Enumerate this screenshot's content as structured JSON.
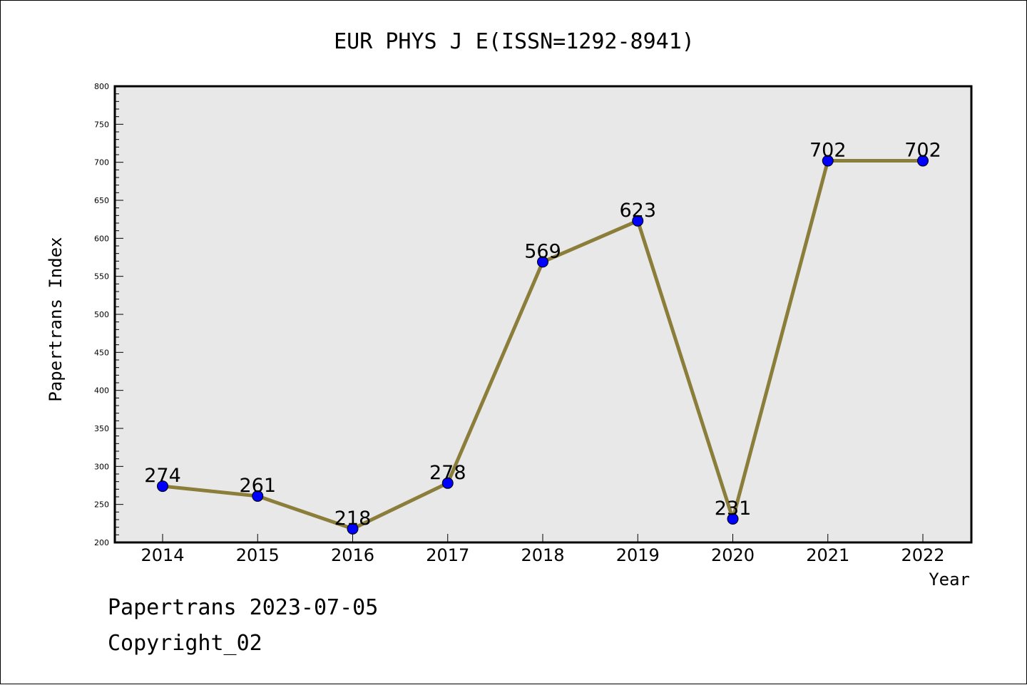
{
  "chart_data": {
    "type": "line",
    "title": "EUR PHYS J E(ISSN=1292-8941)",
    "xlabel": "Year",
    "ylabel": "Papertrans Index",
    "categories": [
      "2014",
      "2015",
      "2016",
      "2017",
      "2018",
      "2019",
      "2020",
      "2021",
      "2022"
    ],
    "series": [
      {
        "values": [
          274,
          261,
          218,
          278,
          569,
          623,
          231,
          702,
          702
        ],
        "data_labels": [
          "274",
          "261",
          "218",
          "278",
          "569",
          "623",
          "231",
          "702",
          "702"
        ]
      }
    ],
    "ylim": [
      200,
      800
    ],
    "yticks": [
      200,
      250,
      300,
      350,
      400,
      450,
      500,
      550,
      600,
      650,
      700,
      750,
      800
    ],
    "ytick_labels": [
      "200",
      "250",
      "300",
      "350",
      "400",
      "450",
      "500",
      "550",
      "600",
      "650",
      "700",
      "750",
      "800"
    ],
    "grid": false,
    "legend": "none",
    "colors": {
      "plot_background": "#e8e8e8",
      "line": "#8b7d3a",
      "marker": "#0000ff",
      "marker_edge": "#000000",
      "axis": "#000000"
    }
  },
  "footer": {
    "line1": "Papertrans 2023-07-05",
    "line2": "Copyright_02"
  }
}
